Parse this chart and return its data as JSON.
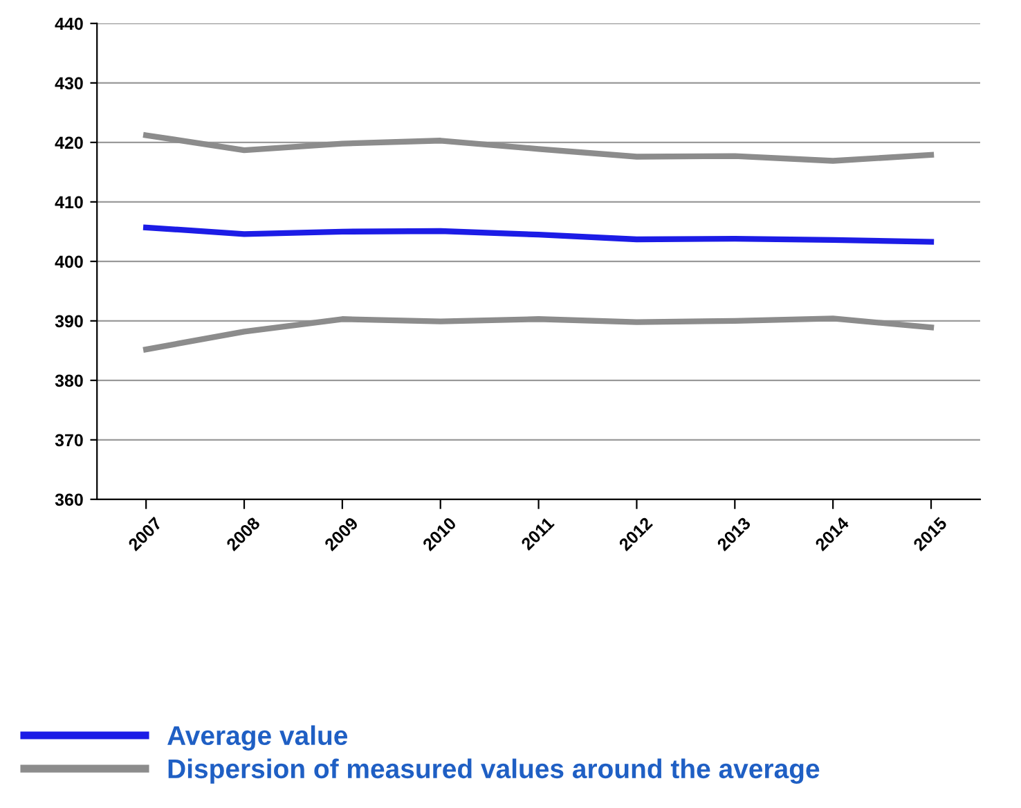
{
  "chart_data": {
    "type": "line",
    "categories": [
      "2007",
      "2008",
      "2009",
      "2010",
      "2011",
      "2012",
      "2013",
      "2014",
      "2015"
    ],
    "series": [
      {
        "name": "Average value",
        "color": "#1c1ce6",
        "values": [
          405.7,
          404.6,
          405.0,
          405.1,
          404.5,
          403.7,
          403.8,
          403.6,
          403.3
        ]
      },
      {
        "name": "Dispersion of measured values around the average",
        "color": "#8c8c8c",
        "values": [
          421.2,
          418.7,
          419.8,
          420.3,
          418.9,
          417.6,
          417.7,
          416.9,
          417.9
        ]
      },
      {
        "color": "#8c8c8c",
        "values": [
          385.2,
          388.2,
          390.3,
          389.9,
          390.3,
          389.8,
          390.0,
          390.4,
          388.9
        ]
      }
    ],
    "ylim": [
      360,
      440
    ],
    "yticks": [
      360,
      370,
      380,
      390,
      400,
      410,
      420,
      430,
      440
    ],
    "grid": "y",
    "legend": "bottom",
    "marker": "none",
    "line_style": "solid"
  }
}
